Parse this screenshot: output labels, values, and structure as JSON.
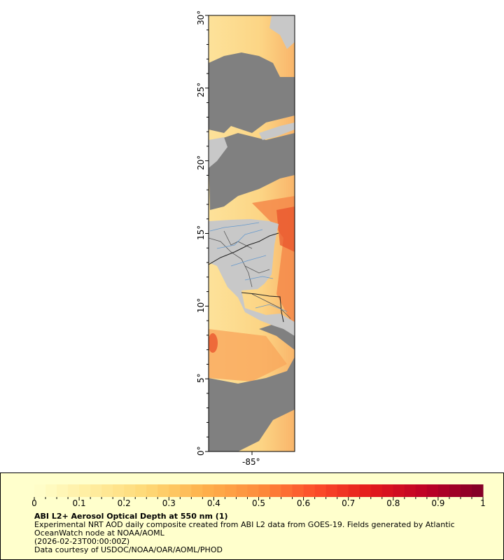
{
  "map": {
    "lat_range": [
      0,
      30
    ],
    "lon_center": -85,
    "y_ticks": [
      "0°",
      "5°",
      "10°",
      "15°",
      "20°",
      "25°",
      "30°"
    ],
    "x_ticks": [
      "-85°"
    ],
    "colors": {
      "land": "#c8c8c8",
      "no_data": "#808080",
      "border": "#333333",
      "river": "#6699cc"
    }
  },
  "legend": {
    "range": [
      0,
      1
    ],
    "tick_labels": [
      "0",
      "0.1",
      "0.2",
      "0.3",
      "0.4",
      "0.5",
      "0.6",
      "0.7",
      "0.8",
      "0.9",
      "1"
    ],
    "title": "ABI L2+ Aerosol Optical Depth at 550 nm (1)",
    "line1": "Experimental NRT AOD daily composite created from ABI L2 data from GOES-19. Fields generated by Atlantic",
    "line2": "OceanWatch node at NOAA/AOML",
    "line3": "(2026-02-23T00:00:00Z)",
    "line4": "Data courtesy of USDOC/NOAA/OAR/AOML/PHOD",
    "palette": [
      "#ffffcc",
      "#ffeda0",
      "#fed976",
      "#feb24c",
      "#fd8d3c",
      "#fc4e2a",
      "#e31a1c",
      "#bd0026",
      "#800026"
    ]
  }
}
